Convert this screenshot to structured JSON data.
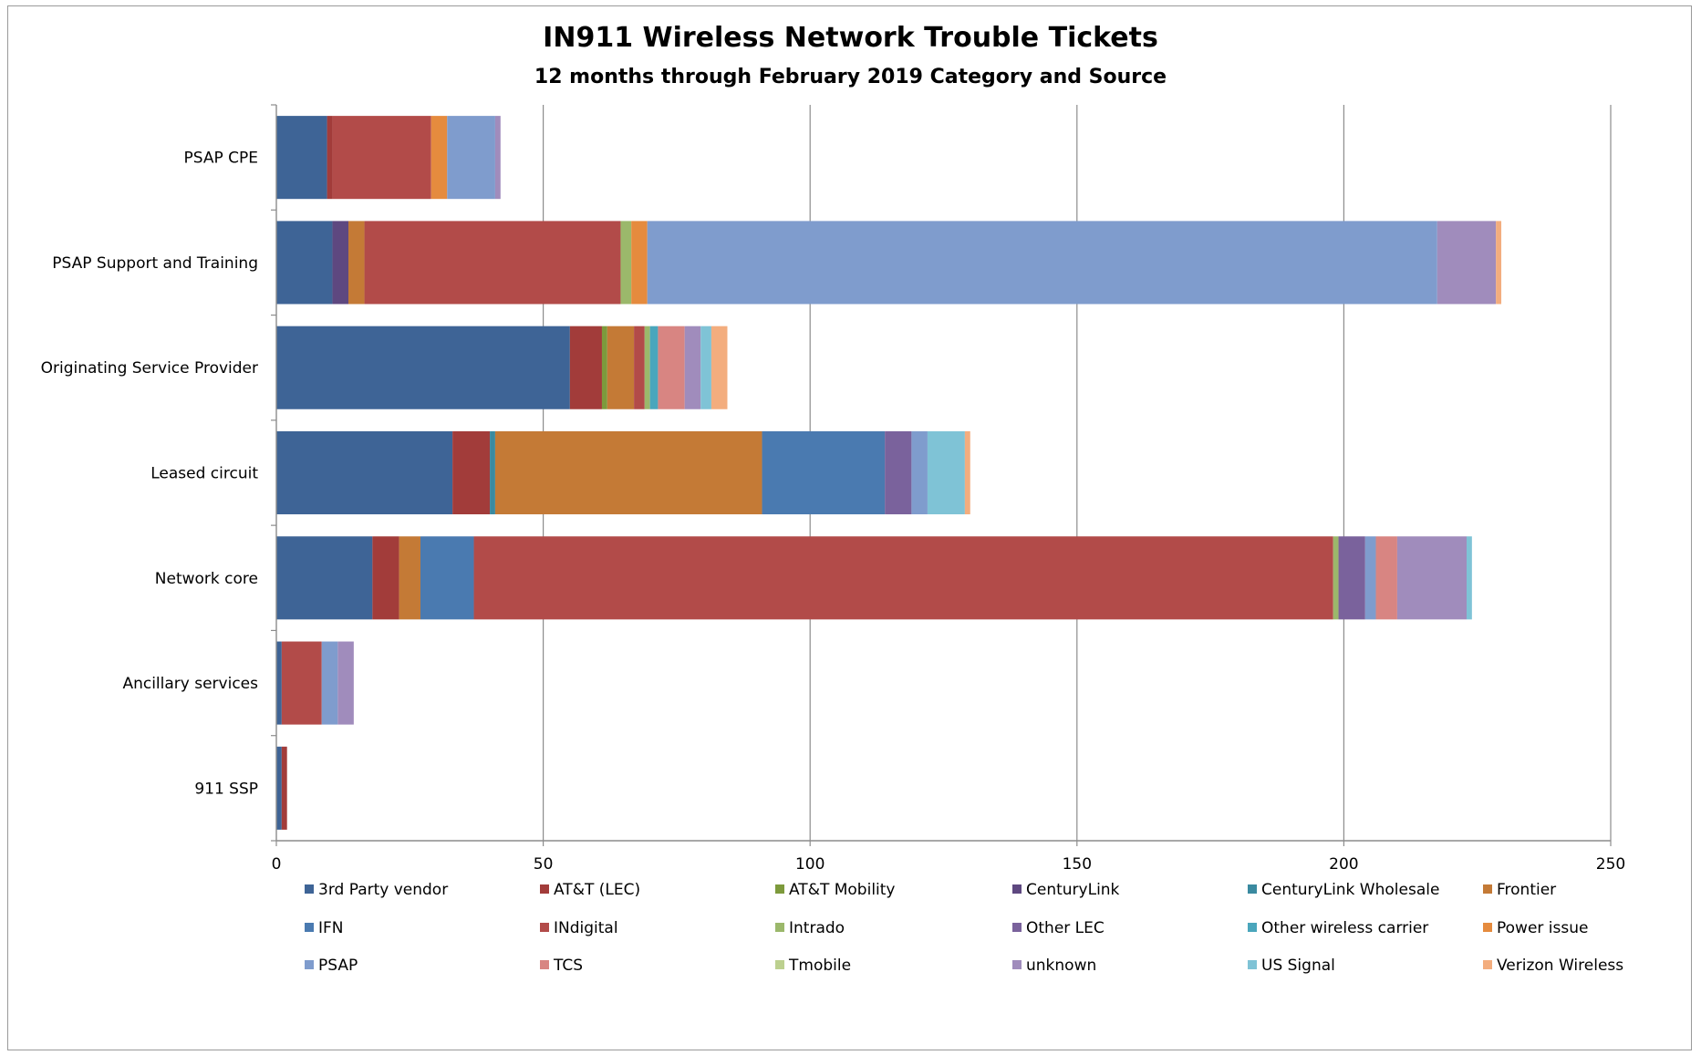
{
  "chart_data": {
    "type": "bar",
    "orientation": "horizontal",
    "stacked": true,
    "title": "IN911 Wireless Network Trouble Tickets",
    "subtitle": "12 months through February 2019 Category and Source",
    "xlabel": "",
    "ylabel": "",
    "xlim": [
      0,
      250
    ],
    "xticks": [
      "0",
      "50",
      "100",
      "150",
      "200",
      "250"
    ],
    "grid": "vertical major",
    "legend_position": "bottom",
    "categories": [
      "PSAP CPE",
      "PSAP Support and Training",
      "Originating Service Provider",
      "Leased circuit",
      "Network core",
      "Ancillary services",
      "911 SSP"
    ],
    "series": [
      {
        "name": "3rd Party vendor",
        "color": "#3e6496",
        "values": [
          9.5,
          10.5,
          55,
          33,
          18,
          1,
          1
        ]
      },
      {
        "name": "AT&T (LEC)",
        "color": "#a23c3a",
        "values": [
          1,
          0,
          6,
          7,
          5,
          0,
          1
        ]
      },
      {
        "name": "AT&T Mobility",
        "color": "#7d9a3c",
        "values": [
          0,
          0,
          1,
          0,
          0,
          0,
          0
        ]
      },
      {
        "name": "CenturyLink",
        "color": "#5e4880",
        "values": [
          0,
          3,
          0,
          0,
          0,
          0,
          0
        ]
      },
      {
        "name": "CenturyLink Wholesale",
        "color": "#3a8aa0",
        "values": [
          0,
          0,
          0,
          1,
          0,
          0,
          0
        ]
      },
      {
        "name": "Frontier",
        "color": "#c47a36",
        "values": [
          0,
          3,
          5,
          50,
          4,
          0,
          0
        ]
      },
      {
        "name": "IFN",
        "color": "#4a7ab0",
        "values": [
          0,
          0,
          0,
          23,
          10,
          0,
          0
        ]
      },
      {
        "name": "INdigital",
        "color": "#b24b49",
        "values": [
          18.5,
          48,
          2,
          0,
          161,
          7.5,
          0
        ]
      },
      {
        "name": "Intrado",
        "color": "#9bb86b",
        "values": [
          0,
          2,
          1,
          0,
          1,
          0,
          0
        ]
      },
      {
        "name": "Other LEC",
        "color": "#7a629c",
        "values": [
          0,
          0,
          0,
          5,
          5,
          0,
          0
        ]
      },
      {
        "name": "Other wireless carrier",
        "color": "#4aa6bc",
        "values": [
          0,
          0,
          1.5,
          0,
          0,
          0,
          0
        ]
      },
      {
        "name": "Power issue",
        "color": "#e58b3e",
        "values": [
          3,
          3,
          0,
          0,
          0,
          0,
          0
        ]
      },
      {
        "name": "PSAP",
        "color": "#7f9ccd",
        "values": [
          9,
          148,
          0,
          3,
          2,
          3,
          0
        ]
      },
      {
        "name": "TCS",
        "color": "#d88582",
        "values": [
          0,
          0,
          5,
          0,
          4,
          0,
          0
        ]
      },
      {
        "name": "Tmobile",
        "color": "#bcd08f",
        "values": [
          0,
          0,
          0,
          0,
          0,
          0,
          0
        ]
      },
      {
        "name": "unknown",
        "color": "#a08cbc",
        "values": [
          1,
          11,
          3,
          0,
          13,
          3,
          0
        ]
      },
      {
        "name": "US Signal",
        "color": "#7fc3d6",
        "values": [
          0,
          0,
          2,
          7,
          1,
          0,
          0
        ]
      },
      {
        "name": "Verizon Wireless",
        "color": "#f3ad7e",
        "values": [
          0,
          1,
          3,
          1,
          0,
          0,
          0
        ]
      }
    ]
  }
}
